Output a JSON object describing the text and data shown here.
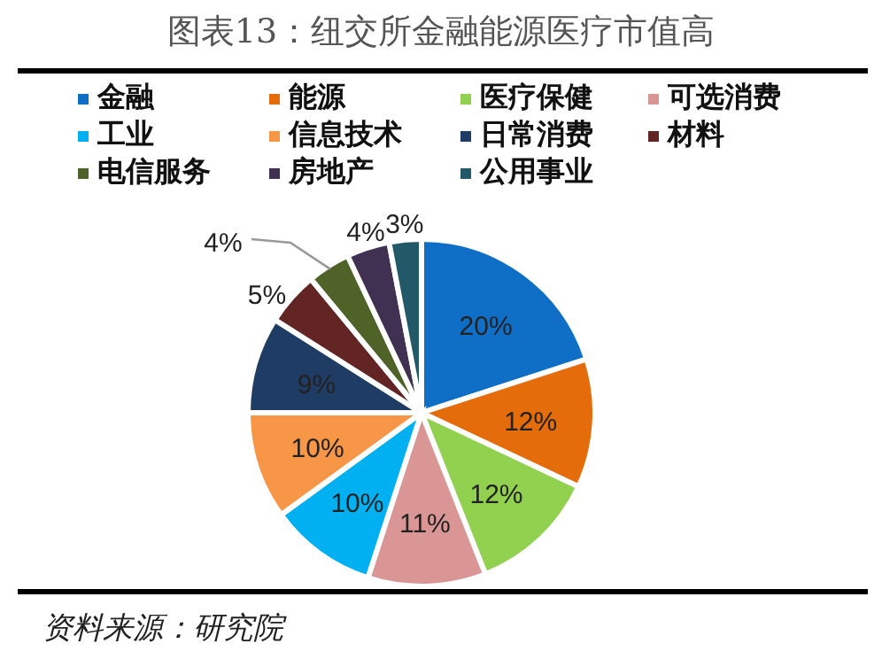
{
  "chart_data": {
    "type": "pie",
    "title": "图表13：纽交所金融能源医疗市值高",
    "categories": [
      "金融",
      "能源",
      "医疗保健",
      "可选消费",
      "工业",
      "信息技术",
      "日常消费",
      "材料",
      "电信服务",
      "房地产",
      "公用事业"
    ],
    "values": [
      20,
      12,
      12,
      11,
      10,
      10,
      9,
      5,
      4,
      4,
      3
    ],
    "value_labels": [
      "20%",
      "12%",
      "12%",
      "11%",
      "10%",
      "10%",
      "9%",
      "5%",
      "4%",
      "4%",
      "3%"
    ],
    "colors": [
      "#0f6fc6",
      "#e46c0a",
      "#92d050",
      "#d99694",
      "#00b0f0",
      "#f79646",
      "#1f3c64",
      "#632523",
      "#4f6228",
      "#403152",
      "#215968"
    ],
    "legend": "top",
    "annotations": [
      "资料来源：研究院"
    ]
  }
}
